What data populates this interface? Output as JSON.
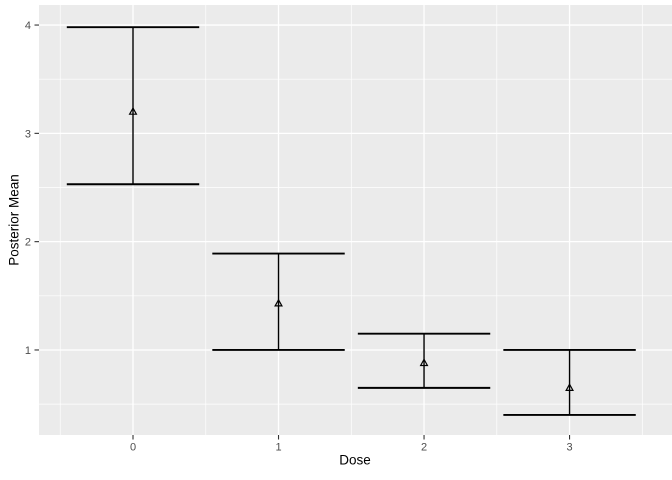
{
  "chart_data": {
    "type": "scatter",
    "subtype": "point-with-errorbar",
    "title": "",
    "xlabel": "Dose",
    "ylabel": "Posterior Mean",
    "x": [
      0,
      1,
      2,
      3
    ],
    "series": [
      {
        "name": "mean",
        "values": [
          3.2,
          1.43,
          0.88,
          0.65
        ]
      },
      {
        "name": "lower",
        "values": [
          2.53,
          1.0,
          0.65,
          0.4
        ]
      },
      {
        "name": "upper",
        "values": [
          3.98,
          1.89,
          1.15,
          1.0
        ]
      }
    ],
    "xlim": [
      -0.646,
      3.704
    ],
    "ylim": [
      0.215,
      4.185
    ],
    "x_major_ticks": [
      0,
      1,
      2,
      3
    ],
    "x_minor_ticks": [
      -0.5,
      0.5,
      1.5,
      2.5,
      3.5
    ],
    "y_major_ticks": [
      1,
      2,
      3,
      4
    ],
    "y_minor_ticks": [
      0.5,
      1.5,
      2.5,
      3.5
    ],
    "x_tick_labels": [
      "0",
      "1",
      "2",
      "3"
    ],
    "y_tick_labels": [
      "1",
      "2",
      "3",
      "4"
    ],
    "errorbar_cap_halfwidth": 0.455,
    "marker": "open-triangle-up",
    "grid": "on",
    "legend": "none",
    "colors": {
      "background": "#FFFFFF",
      "panel_bg": "#EBEBEB",
      "grid_major": "#FFFFFF",
      "grid_minor": "#FFFFFF",
      "errorbar": "#000000",
      "marker_stroke": "#000000",
      "tick_mark": "#333333",
      "tick_label": "#4D4D4D",
      "axis_title": "#000000"
    }
  }
}
